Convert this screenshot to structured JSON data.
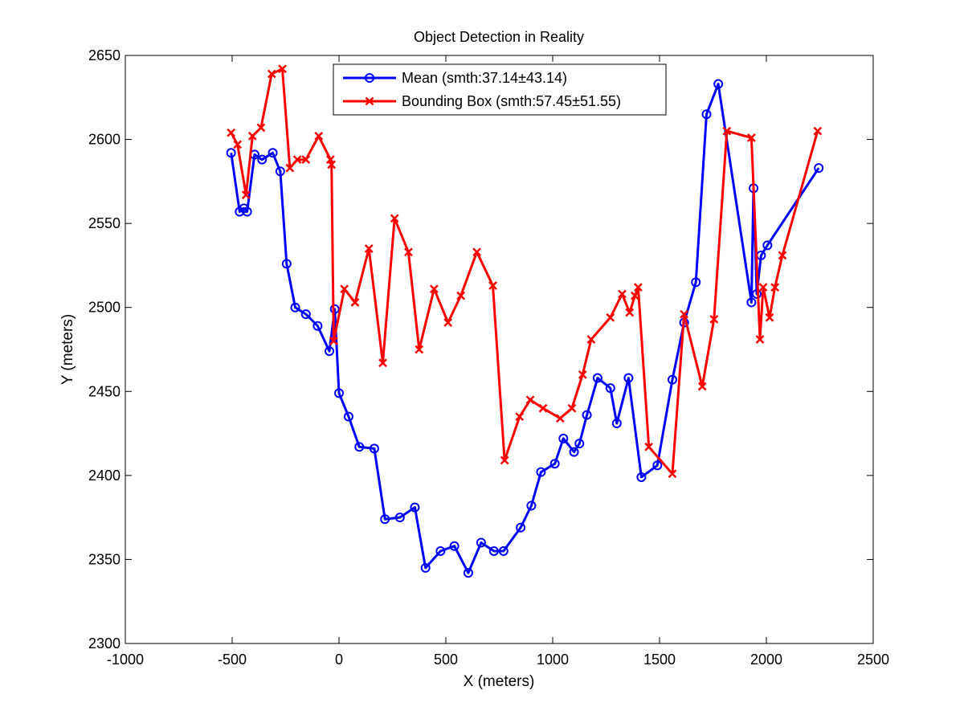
{
  "chart_data": {
    "type": "line",
    "title": "Object Detection in Reality",
    "xlabel": "X (meters)",
    "ylabel": "Y (meters)",
    "xlim": [
      -1000,
      2500
    ],
    "ylim": [
      2300,
      2650
    ],
    "xticks": [
      -1000,
      -500,
      0,
      500,
      1000,
      1500,
      2000,
      2500
    ],
    "yticks": [
      2300,
      2350,
      2400,
      2450,
      2500,
      2550,
      2600,
      2650
    ],
    "xtick_labels": [
      "-1000",
      "-500",
      "0",
      "500",
      "1000",
      "1500",
      "2000",
      "2500"
    ],
    "ytick_labels": [
      "2300",
      "2350",
      "2400",
      "2450",
      "2500",
      "2550",
      "2600",
      "2650"
    ],
    "grid": false,
    "legend_position": "top-center",
    "series": [
      {
        "name": "Mean (smth:37.14±43.14)",
        "color": "#0000ff",
        "marker": "circle",
        "x": [
          -505,
          -465,
          -445,
          -430,
          -395,
          -360,
          -310,
          -275,
          -245,
          -205,
          -155,
          -100,
          -45,
          -20,
          0,
          45,
          95,
          165,
          215,
          285,
          355,
          405,
          475,
          540,
          605,
          665,
          725,
          770,
          850,
          900,
          945,
          1010,
          1050,
          1100,
          1125,
          1160,
          1210,
          1270,
          1300,
          1355,
          1415,
          1490,
          1560,
          1615,
          1670,
          1720,
          1775,
          1930,
          1940,
          1955,
          1975,
          2005,
          2245
        ],
        "y": [
          2592,
          2557,
          2559,
          2557,
          2591,
          2588,
          2592,
          2581,
          2526,
          2500,
          2496,
          2489,
          2474,
          2499,
          2449,
          2435,
          2417,
          2416,
          2374,
          2375,
          2381,
          2345,
          2355,
          2358,
          2342,
          2360,
          2355,
          2355,
          2369,
          2382,
          2402,
          2407,
          2422,
          2414,
          2419,
          2436,
          2458,
          2452,
          2431,
          2458,
          2399,
          2406,
          2457,
          2491,
          2515,
          2615,
          2633,
          2503,
          2571,
          2508,
          2531,
          2537,
          2583
        ]
      },
      {
        "name": "Bounding Box (smth:57.45±51.55)",
        "color": "#ff0000",
        "marker": "x",
        "x": [
          -505,
          -475,
          -435,
          -405,
          -365,
          -315,
          -265,
          -230,
          -195,
          -155,
          -95,
          -40,
          -35,
          -25,
          25,
          75,
          140,
          205,
          260,
          325,
          375,
          445,
          510,
          570,
          645,
          720,
          775,
          845,
          895,
          955,
          1035,
          1090,
          1140,
          1180,
          1270,
          1325,
          1360,
          1385,
          1400,
          1450,
          1560,
          1615,
          1700,
          1755,
          1815,
          1930,
          1970,
          1985,
          2015,
          2040,
          2075,
          2240
        ],
        "y": [
          2604,
          2597,
          2567,
          2602,
          2607,
          2639,
          2642,
          2583,
          2588,
          2588,
          2602,
          2588,
          2585,
          2480,
          2511,
          2503,
          2535,
          2467,
          2553,
          2533,
          2475,
          2511,
          2491,
          2507,
          2533,
          2513,
          2409,
          2435,
          2445,
          2440,
          2434,
          2440,
          2460,
          2481,
          2494,
          2508,
          2497,
          2507,
          2512,
          2417,
          2401,
          2496,
          2453,
          2493,
          2605,
          2601,
          2481,
          2512,
          2494,
          2512,
          2531,
          2605
        ]
      }
    ]
  }
}
